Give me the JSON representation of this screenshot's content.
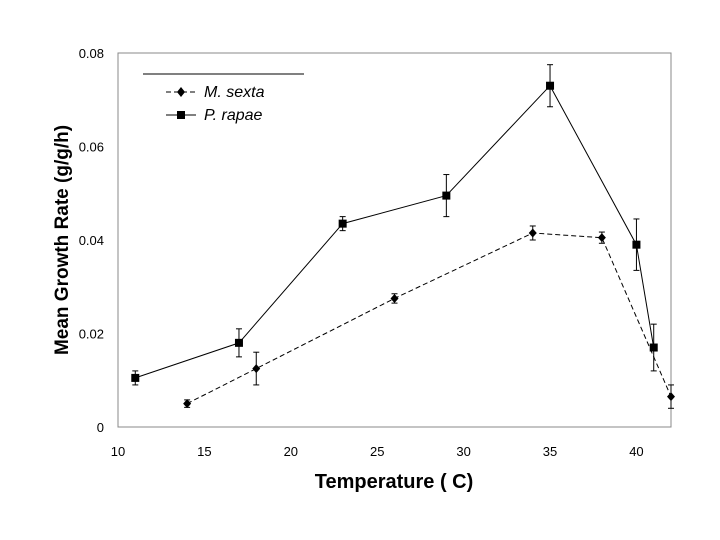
{
  "chart_data": {
    "type": "line",
    "title": "",
    "xlabel": "Temperature ( C)",
    "ylabel": "Mean Growth Rate (g/g/h)",
    "xlim": [
      10,
      42
    ],
    "ylim": [
      0,
      0.08
    ],
    "xticks": [
      "10",
      "15",
      "20",
      "25",
      "30",
      "35",
      "40"
    ],
    "yticks": [
      "0",
      "0.02",
      "0.04",
      "0.06",
      "0.08"
    ],
    "grid": false,
    "legend_position": "top-left",
    "series": [
      {
        "name": "M. sexta",
        "marker": "diamond",
        "line_style": "dashed",
        "x": [
          14,
          18,
          26,
          34,
          38,
          42
        ],
        "y": [
          0.005,
          0.0125,
          0.0275,
          0.0415,
          0.0405,
          0.0065
        ],
        "err": [
          0.0008,
          0.0035,
          0.001,
          0.0015,
          0.0012,
          0.0025
        ]
      },
      {
        "name": "P. rapae",
        "marker": "square",
        "line_style": "solid",
        "x": [
          11,
          17,
          23,
          29,
          35,
          40,
          41
        ],
        "y": [
          0.0105,
          0.018,
          0.0435,
          0.0495,
          0.073,
          0.039,
          0.017
        ],
        "err": [
          0.0015,
          0.003,
          0.0015,
          0.0045,
          0.0045,
          0.0055,
          0.005
        ]
      }
    ]
  }
}
